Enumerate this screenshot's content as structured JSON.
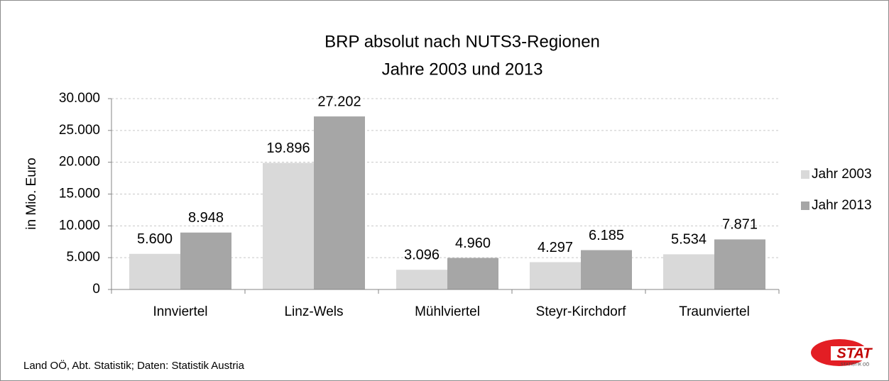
{
  "chart_data": {
    "type": "bar",
    "title": "BRP absolut nach NUTS3-Regionen",
    "subtitle": "Jahre 2003 und 2013",
    "y_label": "in Mio. Euro",
    "categories": [
      "Innviertel",
      "Linz-Wels",
      "Mühlviertel",
      "Steyr-Kirchdorf",
      "Traunviertel"
    ],
    "series": [
      {
        "name": "Jahr 2003",
        "color": "#d9d9d9",
        "values": [
          5600,
          19896,
          3096,
          4297,
          5534
        ],
        "value_labels": [
          "5.600",
          "19.896",
          "3.096",
          "4.297",
          "5.534"
        ]
      },
      {
        "name": "Jahr 2013",
        "color": "#a6a6a6",
        "values": [
          8948,
          27202,
          4960,
          6185,
          7871
        ],
        "value_labels": [
          "8.948",
          "27.202",
          "4.960",
          "6.185",
          "7.871"
        ]
      }
    ],
    "ylim": [
      0,
      30000
    ],
    "yticks": [
      0,
      {
        "value": 5000,
        "label": "5.000"
      },
      {
        "value": 10000,
        "label": "10.000"
      },
      {
        "value": 15000,
        "label": "15.000"
      },
      {
        "value": 20000,
        "label": "20.000"
      },
      {
        "value": 25000,
        "label": "25.000"
      },
      {
        "value": 30000,
        "label": "30.000"
      }
    ],
    "grid": true,
    "legend": "right",
    "source": "Land OÖ, Abt. Statistik; Daten: Statistik Austria",
    "logo": {
      "text": "STAT",
      "subtext": "STATISTIK OÖ"
    }
  }
}
